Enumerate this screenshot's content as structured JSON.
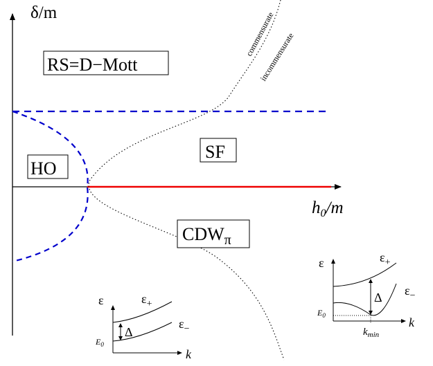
{
  "axes": {
    "y_label": "δ/m",
    "x_label_main": "h",
    "x_label_sub": "0",
    "x_label_tail": "/m"
  },
  "phases": {
    "rs_mott": "RS=D−Mott",
    "ho": "HO",
    "sf": "SF",
    "cdw_main": "CDW",
    "cdw_sub": "π"
  },
  "boundary_labels": {
    "commensurate": "commensurate",
    "incommensurate": "incommensurate"
  },
  "inset_left": {
    "y_axis": "ε",
    "x_axis": "k",
    "upper_main": "ε",
    "upper_sub": "+",
    "lower_main": "ε",
    "lower_sub": "−",
    "gap": "Δ",
    "e0_main": "E",
    "e0_sub": "0"
  },
  "inset_right": {
    "y_axis": "ε",
    "x_axis": "k",
    "upper_main": "ε",
    "upper_sub": "+",
    "lower_main": "ε",
    "lower_sub": "−",
    "gap": "Δ",
    "e0_main": "E",
    "e0_sub": "0",
    "kmin_main": "k",
    "kmin_sub": "min"
  },
  "colors": {
    "axis": "#000000",
    "dashed_boundary": "#0000cc",
    "sf_cdw_line": "#ee0000"
  }
}
